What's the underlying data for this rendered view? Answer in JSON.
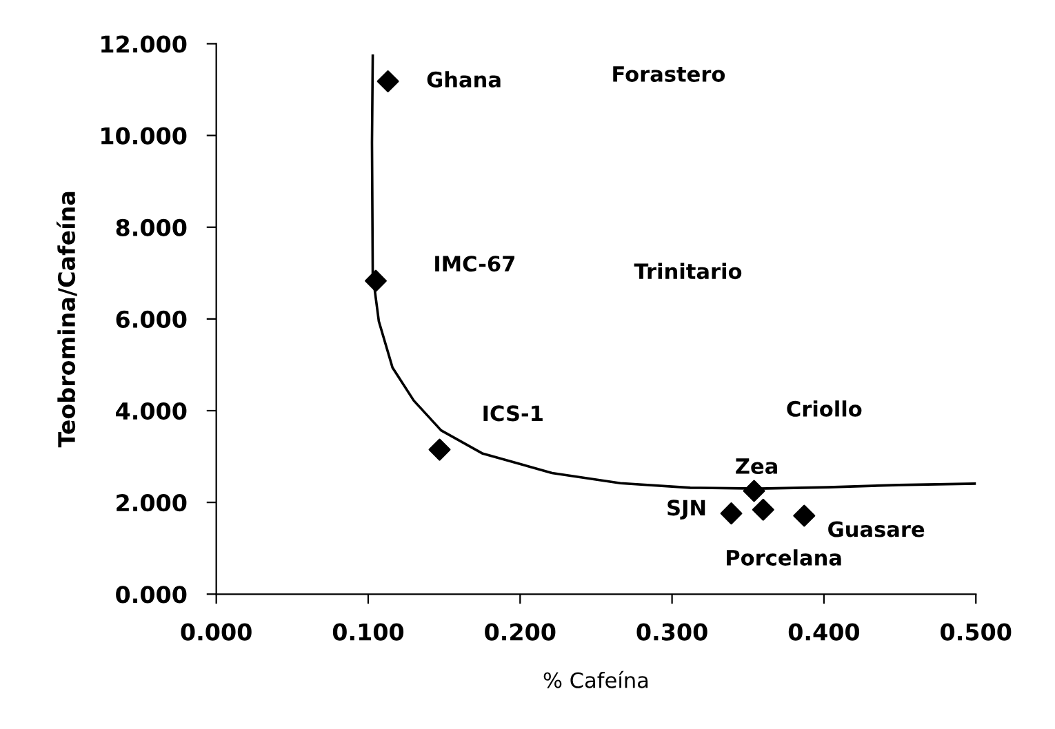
{
  "chart_data": {
    "type": "scatter",
    "xlabel": "% Cafeína",
    "ylabel": "Teobromina/Cafeína",
    "x": [
      0.113,
      0.105,
      0.147,
      0.354,
      0.339,
      0.36,
      0.387
    ],
    "series": [
      {
        "color": "#000000",
        "marker": "diamond",
        "values": [
          11.18,
          6.83,
          3.15,
          2.25,
          1.76,
          1.84,
          1.71
        ]
      },
      {
        "type": "line",
        "color": "#000000",
        "marker": "none",
        "line_style": "solid",
        "x": [
          0.103,
          0.1025,
          0.103,
          0.107,
          0.116,
          0.13,
          0.148,
          0.175,
          0.221,
          0.266,
          0.312,
          0.357,
          0.403,
          0.449,
          0.5
        ],
        "values": [
          11.74,
          9.84,
          6.96,
          5.95,
          4.94,
          4.22,
          3.57,
          3.07,
          2.64,
          2.42,
          2.32,
          2.3,
          2.33,
          2.38,
          2.41
        ]
      }
    ],
    "annotations": [
      {
        "text": "Ghana",
        "x": 0.113,
        "y": 11.18
      },
      {
        "text": "IMC-67",
        "x": 0.105,
        "y": 6.83
      },
      {
        "text": "ICS-1",
        "x": 0.147,
        "y": 3.15
      },
      {
        "text": "Zea",
        "x": 0.354,
        "y": 2.25
      },
      {
        "text": "SJN",
        "x": 0.339,
        "y": 1.76
      },
      {
        "text": "Porcelana",
        "x": 0.36,
        "y": 1.84
      },
      {
        "text": "Guasare",
        "x": 0.387,
        "y": 1.71
      },
      "Forastero",
      "Trinitario",
      "Criollo"
    ],
    "xlim": [
      0,
      0.5
    ],
    "xticks": [
      {
        "value": 0,
        "label": "0.000"
      },
      {
        "value": 0.1,
        "label": "0.100"
      },
      {
        "value": 0.2,
        "label": "0.200"
      },
      {
        "value": 0.3,
        "label": "0.300"
      },
      {
        "value": 0.4,
        "label": "0.400"
      },
      {
        "value": 0.5,
        "label": "0.500"
      }
    ],
    "ylim": [
      0,
      12
    ],
    "yticks": [
      {
        "value": 0,
        "label": "0.000"
      },
      {
        "value": 2,
        "label": "2.000"
      },
      {
        "value": 4,
        "label": "4.000"
      },
      {
        "value": 6,
        "label": "6.000"
      },
      {
        "value": 8,
        "label": "8.000"
      },
      {
        "value": 10,
        "label": "10.000"
      },
      {
        "value": 12,
        "label": "12.000"
      }
    ],
    "grid": false,
    "legend": false
  }
}
